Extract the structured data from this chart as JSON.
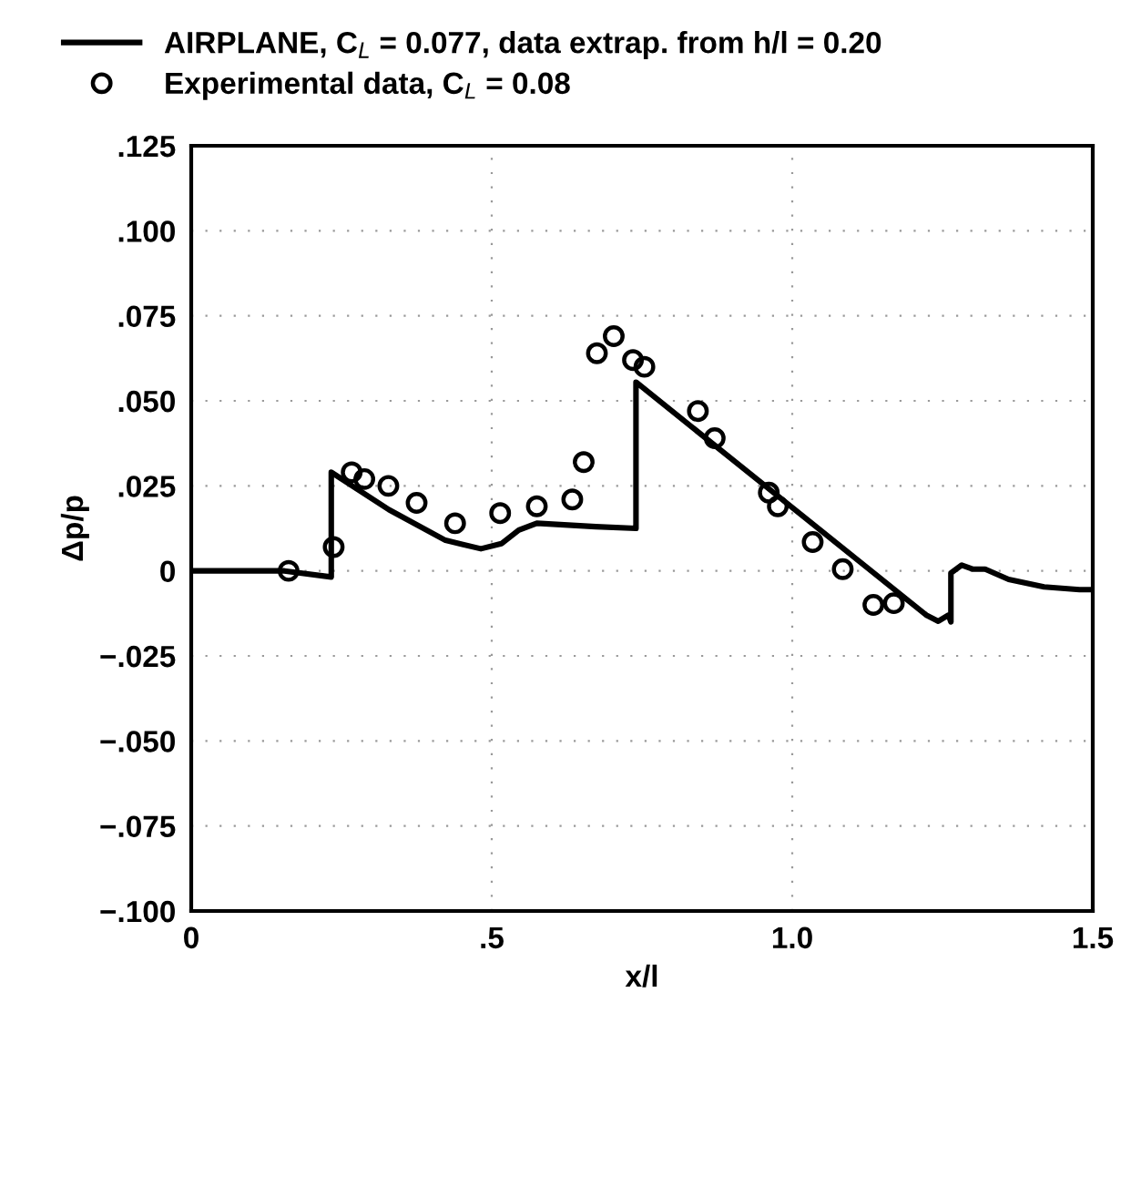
{
  "chart_data": {
    "type": "line",
    "xlabel": "x/l",
    "ylabel": "Δp/p",
    "xlim": [
      0,
      1.5
    ],
    "ylim": [
      -0.1,
      0.125
    ],
    "xticks": [
      0,
      {
        "value": 0.5,
        "label": ".5"
      },
      {
        "value": 1.0,
        "label": "1.0"
      },
      1.5
    ],
    "yticks": [
      {
        "value": -0.1,
        "label": "−.100"
      },
      {
        "value": -0.075,
        "label": "−.075"
      },
      {
        "value": -0.05,
        "label": "−.050"
      },
      {
        "value": -0.025,
        "label": "−.025"
      },
      0,
      {
        "value": 0.025,
        "label": ".025"
      },
      {
        "value": 0.05,
        "label": ".050"
      },
      {
        "value": 0.075,
        "label": ".075"
      },
      {
        "value": 0.1,
        "label": ".100"
      },
      {
        "value": 0.125,
        "label": ".125"
      }
    ],
    "grid": true,
    "legend": "top left",
    "series": [
      {
        "name": "AIRPLANE, C$_{L}$ = 0.077, data extrap. from h/l = 0.20",
        "color": "#000000",
        "line_style": "solid",
        "marker": "none",
        "x": [
          0,
          0.155,
          0.233,
          0.233,
          0.329,
          0.423,
          0.482,
          0.516,
          0.545,
          0.575,
          0.673,
          0.74,
          0.74,
          1.223,
          1.243,
          1.26,
          1.264,
          1.264,
          1.282,
          1.301,
          1.321,
          1.36,
          1.419,
          1.478,
          1.5
        ],
        "values": [
          0,
          0,
          -0.0018,
          0.029,
          0.018,
          0.009,
          0.0065,
          0.008,
          0.012,
          0.014,
          0.013,
          0.0125,
          0.0555,
          -0.013,
          -0.0148,
          -0.013,
          -0.015,
          -0.0006,
          0.0017,
          0.0005,
          0.0005,
          -0.0025,
          -0.0047,
          -0.0055,
          -0.0055
        ]
      },
      {
        "name": "Experimental data, C$_{L}$ = 0.08",
        "type": "scatter",
        "color": "#000000",
        "marker": "circle",
        "x": [
          0.162,
          0.237,
          0.267,
          0.288,
          0.328,
          0.375,
          0.439,
          0.514,
          0.575,
          0.634,
          0.653,
          0.675,
          0.703,
          0.735,
          0.754,
          0.843,
          0.871,
          0.961,
          0.976,
          1.034,
          1.084,
          1.135,
          1.169
        ],
        "values": [
          0,
          0.007,
          0.029,
          0.027,
          0.025,
          0.02,
          0.014,
          0.017,
          0.019,
          0.021,
          0.032,
          0.064,
          0.069,
          0.062,
          0.06,
          0.047,
          0.039,
          0.023,
          0.019,
          0.0085,
          0.0005,
          -0.01,
          -0.0095
        ]
      }
    ]
  }
}
